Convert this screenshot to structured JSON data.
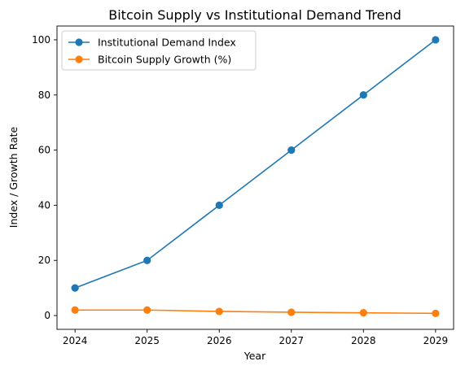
{
  "chart_data": {
    "type": "line",
    "title": "Bitcoin Supply vs Institutional Demand Trend",
    "xlabel": "Year",
    "ylabel": "Index / Growth Rate",
    "x": [
      "2024",
      "2025",
      "2026",
      "2027",
      "2028",
      "2029"
    ],
    "xlim": [
      2023.75,
      2029.25
    ],
    "ylim": [
      -5,
      105
    ],
    "yticks": [
      0,
      20,
      40,
      60,
      80,
      100
    ],
    "grid": false,
    "legend_position": "top-left",
    "series": [
      {
        "name": "Institutional Demand Index",
        "color": "#1f77b4",
        "marker": "circle",
        "values": [
          10,
          20,
          40,
          60,
          80,
          100
        ]
      },
      {
        "name": "Bitcoin Supply Growth (%)",
        "color": "#ff7f0e",
        "marker": "circle",
        "values": [
          2.0,
          2.0,
          1.5,
          1.2,
          1.0,
          0.8
        ]
      }
    ]
  }
}
